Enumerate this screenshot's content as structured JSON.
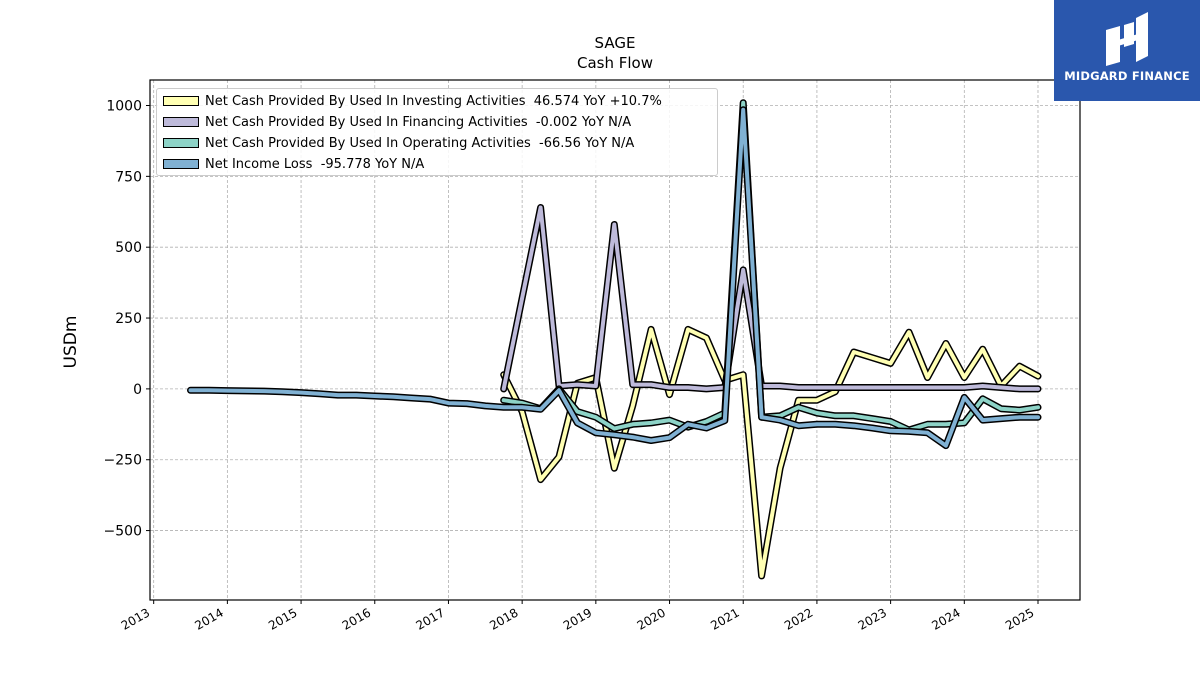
{
  "chart_data": {
    "type": "line",
    "title": "SAGE",
    "subtitle": "Cash Flow",
    "xlabel": "",
    "ylabel": "USDm",
    "xlim": [
      2012.95,
      2025.57
    ],
    "ylim": [
      -745,
      1090
    ],
    "grid": true,
    "legend_position": "top-left",
    "x_ticks": [
      "2013",
      "2014",
      "2015",
      "2016",
      "2017",
      "2018",
      "2019",
      "2020",
      "2021",
      "2022",
      "2023",
      "2024",
      "2025"
    ],
    "y_ticks": [
      -500,
      -250,
      0,
      250,
      500,
      750,
      1000
    ],
    "y_tick_labels": [
      "−500",
      "−250",
      "0",
      "250",
      "500",
      "750",
      "1000"
    ],
    "series": [
      {
        "name": "Net Cash Provided By Used In Investing Activities",
        "legend_label": "Net Cash Provided By Used In Investing Activities  46.574 YoY +10.7%",
        "color": "#ffffb3",
        "x": [
          2017.75,
          2018.0,
          2018.25,
          2018.5,
          2018.75,
          2019.0,
          2019.25,
          2019.5,
          2019.75,
          2020.0,
          2020.25,
          2020.5,
          2020.75,
          2021.0,
          2021.25,
          2021.5,
          2021.75,
          2022.0,
          2022.25,
          2022.5,
          2022.75,
          2023.0,
          2023.25,
          2023.5,
          2023.75,
          2024.0,
          2024.25,
          2024.5,
          2024.75,
          2025.0
        ],
        "values": [
          50,
          -80,
          -320,
          -240,
          20,
          40,
          -280,
          -60,
          210,
          -20,
          210,
          180,
          30,
          50,
          -660,
          -280,
          -40,
          -40,
          -10,
          130,
          110,
          90,
          200,
          40,
          160,
          40,
          140,
          10,
          80,
          45
        ]
      },
      {
        "name": "Net Cash Provided By Used In Financing Activities",
        "legend_label": "Net Cash Provided By Used In Financing Activities  -0.002 YoY N/A",
        "color": "#bebada",
        "x": [
          2017.75,
          2018.0,
          2018.25,
          2018.5,
          2018.75,
          2019.0,
          2019.25,
          2019.5,
          2019.75,
          2020.0,
          2020.25,
          2020.5,
          2020.75,
          2021.0,
          2021.25,
          2021.5,
          2021.75,
          2022.0,
          2022.25,
          2022.5,
          2022.75,
          2023.0,
          2023.25,
          2023.5,
          2023.75,
          2024.0,
          2024.25,
          2024.5,
          2024.75,
          2025.0
        ],
        "values": [
          0,
          320,
          640,
          10,
          15,
          10,
          580,
          15,
          15,
          5,
          5,
          0,
          5,
          420,
          10,
          10,
          5,
          5,
          5,
          5,
          5,
          5,
          5,
          5,
          5,
          5,
          10,
          5,
          0,
          0
        ]
      },
      {
        "name": "Net Cash Provided By Used In Operating Activities",
        "legend_label": "Net Cash Provided By Used In Operating Activities  -66.56 YoY N/A",
        "color": "#8dd3c7",
        "x": [
          2017.75,
          2018.0,
          2018.25,
          2018.5,
          2018.75,
          2019.0,
          2019.25,
          2019.5,
          2019.75,
          2020.0,
          2020.25,
          2020.5,
          2020.75,
          2021.0,
          2021.25,
          2021.5,
          2021.75,
          2022.0,
          2022.25,
          2022.5,
          2022.75,
          2023.0,
          2023.25,
          2023.5,
          2023.75,
          2024.0,
          2024.25,
          2024.5,
          2024.75,
          2025.0
        ],
        "values": [
          -40,
          -50,
          -70,
          0,
          -80,
          -100,
          -140,
          -125,
          -120,
          -110,
          -135,
          -115,
          -85,
          1010,
          -100,
          -95,
          -65,
          -85,
          -95,
          -95,
          -105,
          -115,
          -145,
          -125,
          -125,
          -120,
          -35,
          -70,
          -75,
          -65
        ]
      },
      {
        "name": "Net Income Loss",
        "legend_label": "Net Income Loss  -95.778 YoY N/A",
        "color": "#80b1d3",
        "x": [
          2013.5,
          2013.75,
          2014.0,
          2014.25,
          2014.5,
          2014.75,
          2015.0,
          2015.25,
          2015.5,
          2015.75,
          2016.0,
          2016.25,
          2016.5,
          2016.75,
          2017.0,
          2017.25,
          2017.5,
          2017.75,
          2018.0,
          2018.25,
          2018.5,
          2018.75,
          2019.0,
          2019.25,
          2019.5,
          2019.75,
          2020.0,
          2020.25,
          2020.5,
          2020.75,
          2021.0,
          2021.25,
          2021.5,
          2021.75,
          2022.0,
          2022.25,
          2022.5,
          2022.75,
          2023.0,
          2023.25,
          2023.5,
          2023.75,
          2024.0,
          2024.25,
          2024.5,
          2024.75,
          2025.0
        ],
        "values": [
          -5,
          -5,
          -6,
          -7,
          -8,
          -10,
          -13,
          -17,
          -22,
          -22,
          -25,
          -28,
          -32,
          -36,
          -50,
          -52,
          -60,
          -65,
          -65,
          -72,
          -5,
          -120,
          -155,
          -162,
          -170,
          -182,
          -172,
          -125,
          -138,
          -112,
          985,
          -100,
          -110,
          -130,
          -125,
          -125,
          -130,
          -138,
          -148,
          -150,
          -155,
          -200,
          -30,
          -110,
          -105,
          -100,
          -100
        ]
      }
    ]
  },
  "logo": {
    "text": "MIDGARD FINANCE"
  }
}
